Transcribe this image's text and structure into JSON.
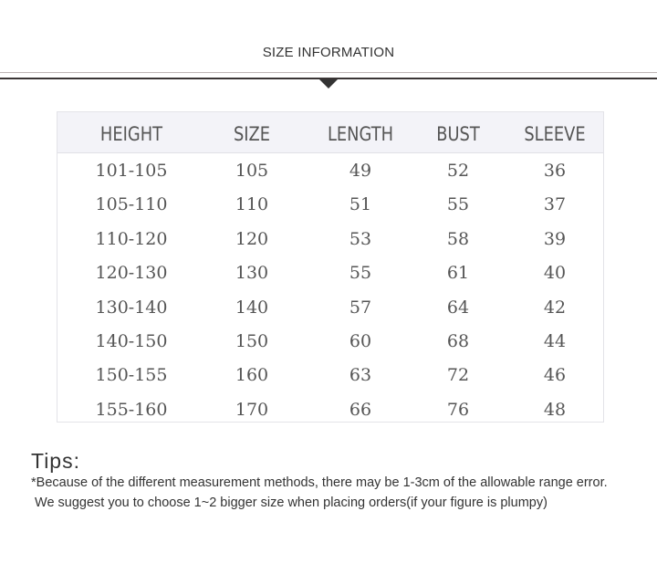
{
  "title": "SIZE INFORMATION",
  "table": {
    "headers": [
      "HEIGHT",
      "SIZE",
      "LENGTH",
      "BUST",
      "SLEEVE"
    ],
    "rows": [
      [
        "101-105",
        "105",
        "49",
        "52",
        "36"
      ],
      [
        "105-110",
        "110",
        "51",
        "55",
        "37"
      ],
      [
        "110-120",
        "120",
        "53",
        "58",
        "39"
      ],
      [
        "120-130",
        "130",
        "55",
        "61",
        "40"
      ],
      [
        "130-140",
        "140",
        "57",
        "64",
        "42"
      ],
      [
        "140-150",
        "150",
        "60",
        "68",
        "44"
      ],
      [
        "150-155",
        "160",
        "63",
        "72",
        "46"
      ],
      [
        "155-160",
        "170",
        "66",
        "76",
        "48"
      ]
    ]
  },
  "tips": {
    "heading": "Tips:",
    "line1": "*Because of the different measurement methods, there may be 1-3cm of the allowable range error.",
    "line2": " We suggest you to choose 1~2 bigger size when placing orders(if your figure is plumpy)"
  }
}
